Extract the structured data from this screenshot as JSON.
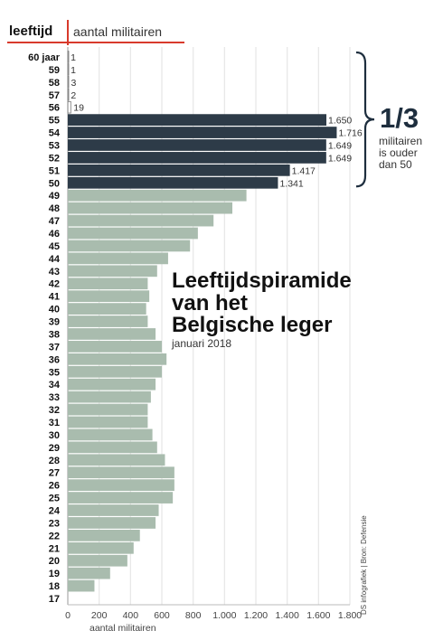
{
  "header": {
    "age_label": "leeftijd",
    "count_label": "aantal militairen"
  },
  "title_lines": [
    "Leeftijdspiramide",
    "van het",
    "Belgische leger"
  ],
  "subtitle": "januari 2018",
  "annotation": {
    "big": "1/3",
    "lines": [
      "militairen",
      "is ouder",
      "dan 50"
    ]
  },
  "credit": "DS infografiek | Bron: Defensie",
  "colors": {
    "older": "#2d3b48",
    "younger": "#a9bcae",
    "accent": "#d83a2c",
    "grid": "#e6e6e6"
  },
  "chart_data": {
    "type": "bar",
    "orientation": "horizontal",
    "xlabel": "aantal militairen",
    "ylabel": "leeftijd",
    "xlim": [
      0,
      1800
    ],
    "xticks": [
      0,
      200,
      400,
      600,
      800,
      1000,
      1200,
      1400,
      1600,
      1800
    ],
    "xtick_labels": [
      "0",
      "200",
      "400",
      "600",
      "800",
      "1.000",
      "1.200",
      "1.400",
      "1.600",
      "1.800"
    ],
    "grid": true,
    "categories": [
      "60 jaar",
      "59",
      "58",
      "57",
      "56",
      "55",
      "54",
      "53",
      "52",
      "51",
      "50",
      "49",
      "48",
      "47",
      "46",
      "45",
      "44",
      "43",
      "42",
      "41",
      "40",
      "39",
      "38",
      "37",
      "36",
      "35",
      "34",
      "33",
      "32",
      "31",
      "30",
      "29",
      "28",
      "27",
      "26",
      "25",
      "24",
      "23",
      "22",
      "21",
      "20",
      "19",
      "18",
      "17"
    ],
    "values": [
      1,
      1,
      3,
      2,
      19,
      1650,
      1716,
      1649,
      1649,
      1417,
      1341,
      1140,
      1050,
      930,
      830,
      780,
      640,
      570,
      510,
      520,
      500,
      510,
      560,
      600,
      630,
      600,
      560,
      530,
      510,
      510,
      540,
      570,
      620,
      680,
      680,
      670,
      580,
      560,
      460,
      420,
      380,
      270,
      170,
      0
    ],
    "value_labels": [
      "1",
      "1",
      "3",
      "2",
      "19",
      "1.650",
      "1.716",
      "1.649",
      "1.649",
      "1.417",
      "1.341",
      "",
      "",
      "",
      "",
      "",
      "",
      "",
      "",
      "",
      "",
      "",
      "",
      "",
      "",
      "",
      "",
      "",
      "",
      "",
      "",
      "",
      "",
      "",
      "",
      "",
      "",
      "",
      "",
      "",
      "",
      "",
      "",
      ""
    ]
  }
}
